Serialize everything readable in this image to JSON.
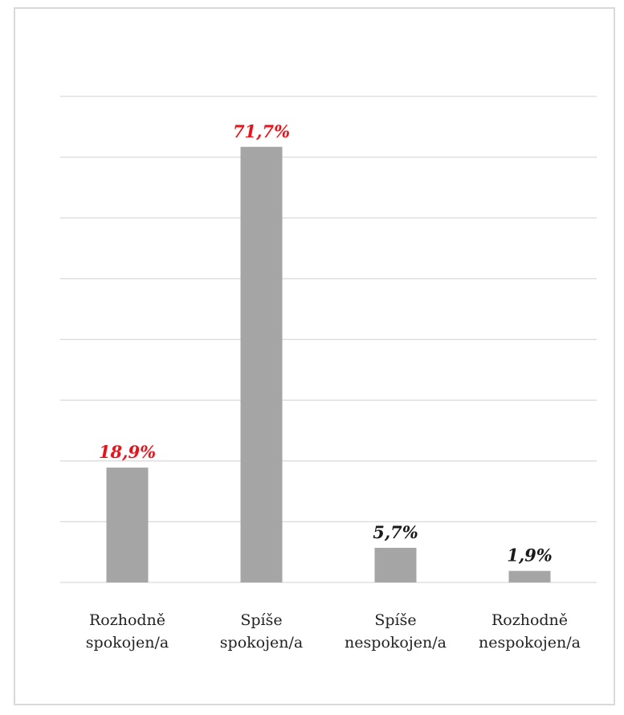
{
  "chart_data": {
    "type": "bar",
    "categories": [
      [
        "Rozhodně",
        "spokojen/a"
      ],
      [
        "Spíše",
        "spokojen/a"
      ],
      [
        "Spíše",
        "nespokojen/a"
      ],
      [
        "Rozhodně",
        "nespokojen/a"
      ]
    ],
    "values": [
      18.9,
      71.7,
      5.7,
      1.9
    ],
    "value_labels": [
      "18,9%",
      "71,7%",
      "5,7%",
      "1,9%"
    ],
    "label_colors": [
      "#e8141b",
      "#e8141b",
      "#1a1a1a",
      "#1a1a1a"
    ],
    "bar_color": "#a5a5a5",
    "grid": true,
    "ylim": [
      0,
      80
    ],
    "y_step": 10,
    "title": "",
    "xlabel": "",
    "ylabel": ""
  }
}
